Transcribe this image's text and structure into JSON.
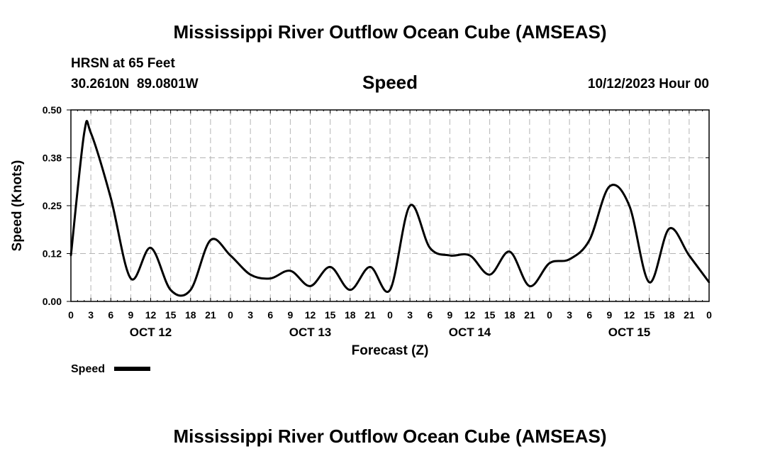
{
  "header": {
    "title": "Mississippi River Outflow Ocean Cube (AMSEAS)",
    "station": "HRSN at 65 Feet",
    "coords": "30.2610N  89.0801W",
    "variable": "Speed",
    "date": "10/12/2023 Hour 00"
  },
  "footer": {
    "title": "Mississippi River Outflow Ocean Cube (AMSEAS)"
  },
  "legend": {
    "label": "Speed"
  },
  "chart_data": {
    "type": "line",
    "title": "Speed",
    "xlabel": "Forecast (Z)",
    "ylabel": "Speed (Knots)",
    "xlim": [
      0,
      96
    ],
    "ylim": [
      0,
      0.5
    ],
    "yticks": [
      0.0,
      0.125,
      0.25,
      0.375,
      0.5
    ],
    "ytick_labels": [
      "0.00",
      "0.12",
      "0.25",
      "0.38",
      "0.50"
    ],
    "xtick_step_hours": 3,
    "xtick_labels": [
      "0",
      "3",
      "6",
      "9",
      "12",
      "15",
      "18",
      "21",
      "0",
      "3",
      "6",
      "9",
      "12",
      "15",
      "18",
      "21",
      "0",
      "3",
      "6",
      "9",
      "12",
      "15",
      "18",
      "21",
      "0",
      "3",
      "6",
      "9",
      "12",
      "15",
      "18",
      "21",
      "0"
    ],
    "day_labels": [
      {
        "hour": 12,
        "label": "OCT 12"
      },
      {
        "hour": 36,
        "label": "OCT 13"
      },
      {
        "hour": 60,
        "label": "OCT 14"
      },
      {
        "hour": 84,
        "label": "OCT 15"
      }
    ],
    "grid": true,
    "legend_position": "bottom-left",
    "series": [
      {
        "name": "Speed",
        "color": "#000000",
        "x": [
          0,
          2,
          3,
          6,
          9,
          12,
          15,
          18,
          21,
          24,
          27,
          30,
          33,
          36,
          39,
          42,
          45,
          48,
          51,
          54,
          57,
          60,
          63,
          66,
          69,
          72,
          75,
          78,
          81,
          84,
          87,
          90,
          93,
          96
        ],
        "values": [
          0.12,
          0.44,
          0.44,
          0.27,
          0.06,
          0.14,
          0.03,
          0.03,
          0.16,
          0.12,
          0.07,
          0.06,
          0.08,
          0.04,
          0.09,
          0.03,
          0.09,
          0.03,
          0.25,
          0.14,
          0.12,
          0.12,
          0.07,
          0.13,
          0.04,
          0.1,
          0.11,
          0.16,
          0.3,
          0.25,
          0.05,
          0.19,
          0.12,
          0.05
        ]
      }
    ]
  }
}
